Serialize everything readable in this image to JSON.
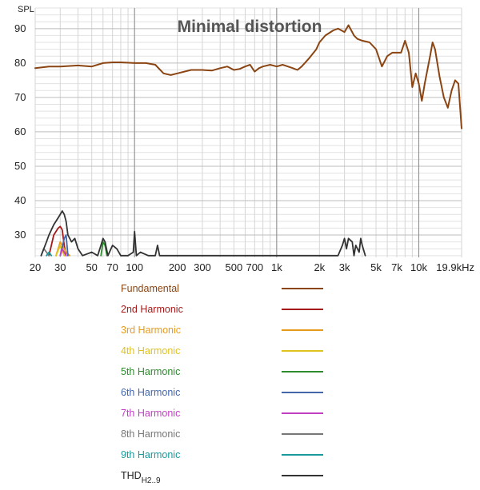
{
  "chart_data": {
    "type": "line",
    "title": "Minimal distortion",
    "ylabel": "SPL",
    "xlabel": "",
    "x_scale": "log",
    "xlim": [
      20,
      20000
    ],
    "ylim": [
      23.5,
      96
    ],
    "grid": true,
    "legend_position": "bottom",
    "x_tick_labels": [
      {
        "x": 20,
        "label": "20"
      },
      {
        "x": 30,
        "label": "30"
      },
      {
        "x": 50,
        "label": "50"
      },
      {
        "x": 70,
        "label": "70"
      },
      {
        "x": 100,
        "label": "100"
      },
      {
        "x": 200,
        "label": "200"
      },
      {
        "x": 300,
        "label": "300"
      },
      {
        "x": 500,
        "label": "500"
      },
      {
        "x": 700,
        "label": "700"
      },
      {
        "x": 1000,
        "label": "1k"
      },
      {
        "x": 2000,
        "label": "2k"
      },
      {
        "x": 3000,
        "label": "3k"
      },
      {
        "x": 5000,
        "label": "5k"
      },
      {
        "x": 7000,
        "label": "7k"
      },
      {
        "x": 10000,
        "label": "10k"
      },
      {
        "x": 20000,
        "label": "19.9kHz"
      }
    ],
    "y_tick_labels": [
      {
        "y": 30,
        "label": "30"
      },
      {
        "y": 40,
        "label": "40"
      },
      {
        "y": 50,
        "label": "50"
      },
      {
        "y": 60,
        "label": "60"
      },
      {
        "y": 70,
        "label": "70"
      },
      {
        "y": 80,
        "label": "80"
      },
      {
        "y": 90,
        "label": "90"
      }
    ],
    "series": [
      {
        "name": "Fundamental",
        "color": "#8b4513",
        "x": [
          20,
          25,
          30,
          40,
          50,
          60,
          70,
          80,
          100,
          120,
          140,
          160,
          180,
          200,
          250,
          300,
          350,
          400,
          450,
          500,
          550,
          600,
          650,
          700,
          750,
          800,
          900,
          1000,
          1100,
          1200,
          1300,
          1400,
          1500,
          1700,
          1900,
          2000,
          2200,
          2500,
          2700,
          3000,
          3200,
          3500,
          3700,
          4000,
          4500,
          5000,
          5500,
          6000,
          6500,
          7000,
          7500,
          8000,
          8500,
          9000,
          9500,
          10000,
          10500,
          11000,
          12000,
          12500,
          13000,
          14000,
          15000,
          16000,
          17000,
          18000,
          19000,
          20000
        ],
        "y": [
          78.5,
          79,
          79,
          79.3,
          79,
          80,
          80.2,
          80.2,
          80,
          80,
          79.5,
          77,
          76.5,
          77,
          78,
          78,
          77.8,
          78.5,
          79,
          78,
          78.3,
          79,
          79.5,
          77.5,
          78.5,
          79,
          79.5,
          79,
          79.5,
          79,
          78.5,
          78,
          79,
          81.5,
          84,
          86,
          88,
          89.5,
          90,
          89,
          91,
          88,
          87,
          86.5,
          86,
          84,
          79,
          82,
          83,
          83,
          83,
          86.5,
          83,
          73,
          77,
          74,
          69,
          74,
          82,
          86,
          84,
          76,
          70,
          67,
          72,
          75,
          74,
          61
        ]
      },
      {
        "name": "2nd Harmonic",
        "color": "#a41a1a",
        "x": [
          25,
          27,
          29,
          30,
          31,
          32,
          33
        ],
        "y": [
          24,
          30,
          32,
          32.5,
          31.5,
          27,
          24
        ]
      },
      {
        "name": "3rd Harmonic",
        "color": "#e79b1c",
        "x": [
          28,
          29,
          30,
          31,
          33,
          35
        ],
        "y": [
          24,
          26,
          28,
          27,
          25,
          24
        ]
      },
      {
        "name": "4th Harmonic",
        "color": "#e0c31f",
        "x": [
          28,
          30,
          32
        ],
        "y": [
          24,
          27,
          24
        ]
      },
      {
        "name": "5th Harmonic",
        "color": "#2e8b2e",
        "x": [
          58,
          60,
          62,
          64
        ],
        "y": [
          24,
          28,
          27,
          24
        ]
      },
      {
        "name": "6th Harmonic",
        "color": "#4466aa",
        "x": [
          30,
          32,
          33,
          34
        ],
        "y": [
          24,
          29,
          30,
          24
        ]
      },
      {
        "name": "7th Harmonic",
        "color": "#c23ec2",
        "x": [
          30,
          31,
          33
        ],
        "y": [
          24,
          26,
          24
        ]
      },
      {
        "name": "8th Harmonic",
        "color": "#777777",
        "x": [
          22,
          23,
          24,
          25
        ],
        "y": [
          24,
          26,
          25,
          24
        ]
      },
      {
        "name": "9th Harmonic",
        "color": "#1a9a9a",
        "x": [
          24,
          25,
          26
        ],
        "y": [
          24,
          25,
          24
        ]
      },
      {
        "name": "THD",
        "name_sub": "H2..9",
        "color": "#333333",
        "x": [
          22,
          24,
          25,
          27,
          29,
          30,
          31,
          32,
          33,
          34,
          36,
          38,
          40,
          43,
          50,
          55,
          58,
          60,
          62,
          65,
          70,
          75,
          80,
          90,
          98,
          100,
          103,
          110,
          125,
          140,
          145,
          150,
          2700,
          2900,
          3000,
          3100,
          3200,
          3400,
          3500,
          3600,
          3800,
          3900,
          4000,
          4200
        ],
        "y": [
          24,
          28,
          30,
          33,
          35,
          36,
          37,
          36,
          34,
          30,
          28,
          29,
          26,
          24,
          25,
          24,
          27,
          29,
          28,
          24,
          27,
          26,
          24,
          24,
          25,
          31,
          24,
          25,
          24,
          24,
          27,
          24,
          24,
          27,
          29,
          26,
          29,
          28,
          24,
          27,
          25,
          29,
          27,
          24
        ]
      }
    ]
  }
}
